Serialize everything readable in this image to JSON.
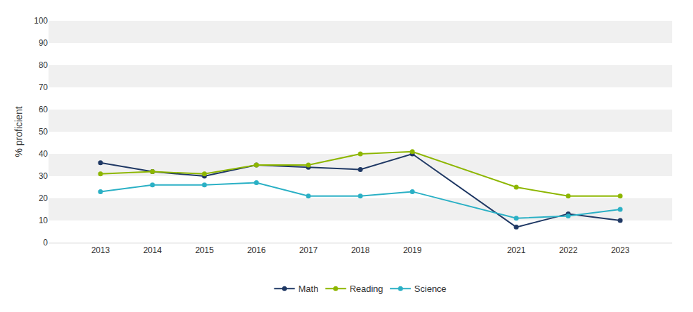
{
  "chart_data": {
    "type": "line",
    "x": [
      2013,
      2014,
      2015,
      2016,
      2017,
      2018,
      2019,
      2021,
      2022,
      2023
    ],
    "series": [
      {
        "name": "Math",
        "color": "#1f3864",
        "values": [
          36,
          32,
          30,
          35,
          34,
          33,
          40,
          7,
          13,
          10
        ]
      },
      {
        "name": "Reading",
        "color": "#8db600",
        "values": [
          31,
          32,
          31,
          35,
          35,
          40,
          41,
          25,
          21,
          21
        ]
      },
      {
        "name": "Science",
        "color": "#2ab0c5",
        "values": [
          23,
          26,
          26,
          27,
          21,
          21,
          23,
          11,
          12,
          15
        ]
      }
    ],
    "ylabel": "% proficient",
    "xlim": [
      2012,
      2024
    ],
    "xticks": [
      2013,
      2014,
      2015,
      2016,
      2017,
      2018,
      2019,
      2021,
      2022,
      2023
    ],
    "ylim": [
      0,
      100
    ],
    "yticks": [
      0,
      10,
      20,
      30,
      40,
      50,
      60,
      70,
      80,
      90,
      100
    ],
    "grid": false,
    "legend": "bottom",
    "marker": "o",
    "line_style": "solid"
  }
}
